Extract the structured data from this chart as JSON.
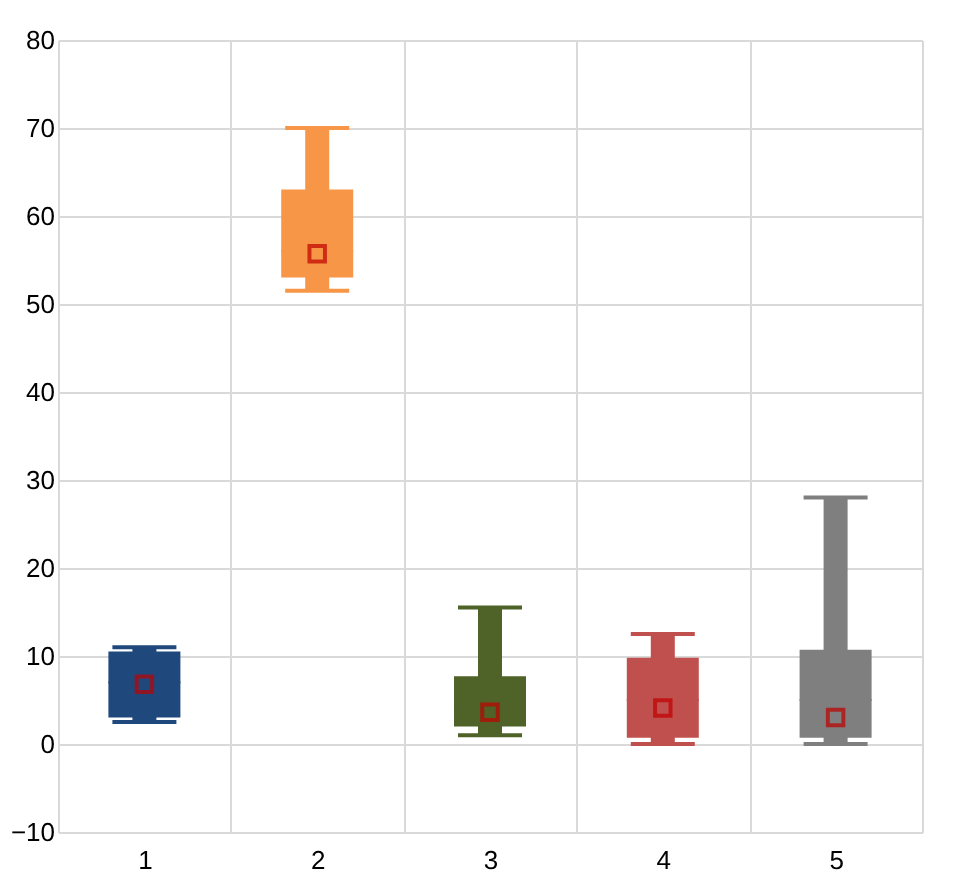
{
  "chart_data": {
    "type": "box",
    "categories": [
      "1",
      "2",
      "3",
      "4",
      "5"
    ],
    "boxes": [
      {
        "low": 2.5,
        "q1": 3,
        "median": 7,
        "q3": 10.5,
        "high": 11,
        "mean": 6.8
      },
      {
        "low": 51.5,
        "q1": 53,
        "median": 56,
        "q3": 63,
        "high": 70,
        "mean": 55.7
      },
      {
        "low": 1,
        "q1": 2,
        "median": 4,
        "q3": 7.7,
        "high": 15.5,
        "mean": 3.6
      },
      {
        "low": 0,
        "q1": 0.7,
        "median": 5,
        "q3": 9.8,
        "high": 12.5,
        "mean": 4.1
      },
      {
        "low": 0,
        "q1": 0.7,
        "median": 5,
        "q3": 10.7,
        "high": 28,
        "mean": 3
      }
    ],
    "colors": [
      "#1f497d",
      "#f79646",
      "#4f6228",
      "#c0504d",
      "#7f7f7f"
    ],
    "ylim": [
      -10,
      80
    ],
    "yticks": [
      -10,
      0,
      10,
      20,
      30,
      40,
      50,
      60,
      70,
      80
    ],
    "grid": true,
    "marker": "square"
  }
}
